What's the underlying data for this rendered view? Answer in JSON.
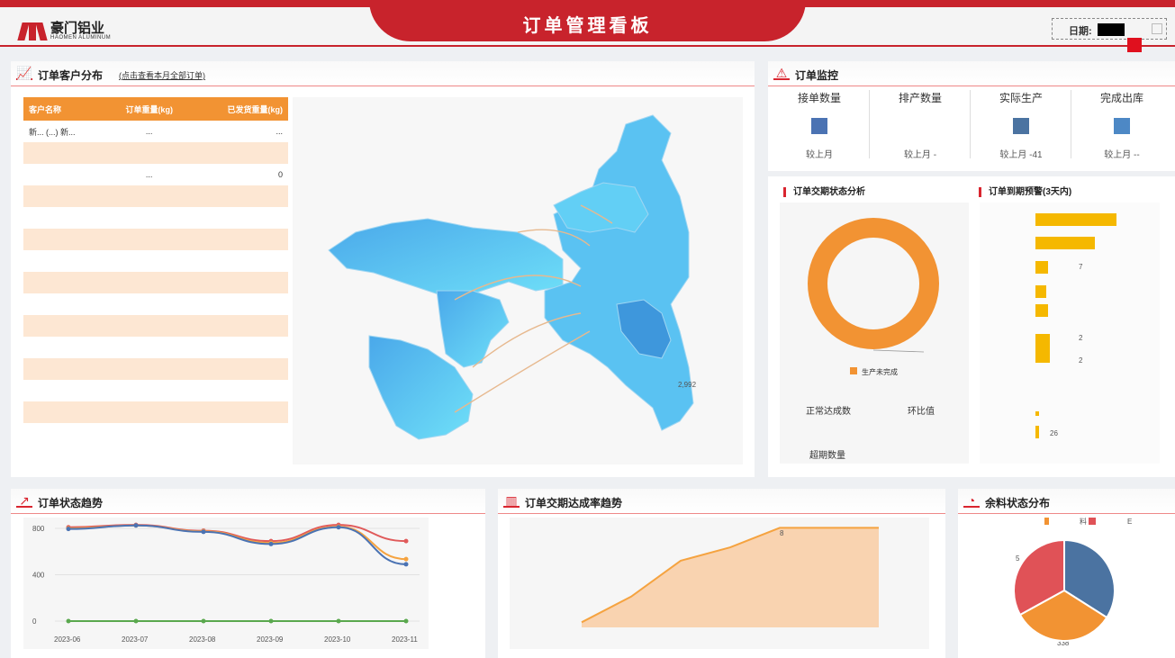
{
  "header": {
    "title": "订单管理看板",
    "logo_cn": "豪门铝业",
    "logo_en": "HAOMEN ALUMINUM",
    "date_label": "日期:"
  },
  "customer_panel": {
    "title": "订单客户分布",
    "subtitle": "(点击查看本月全部订单)",
    "columns": [
      "客户名称",
      "订单重量(kg)",
      "已发货重量(kg)"
    ],
    "rows": [
      {
        "name": "新... (...) 新...",
        "order": "...",
        "shipped": "..."
      },
      {
        "name": "",
        "order": "",
        "shipped": ""
      },
      {
        "name": "",
        "order": "...",
        "shipped": "0"
      },
      {
        "name": "",
        "order": "",
        "shipped": ""
      },
      {
        "name": "",
        "order": "",
        "shipped": ""
      },
      {
        "name": "",
        "order": "",
        "shipped": ""
      },
      {
        "name": "",
        "order": "",
        "shipped": ""
      },
      {
        "name": "",
        "order": "",
        "shipped": ""
      },
      {
        "name": "",
        "order": "",
        "shipped": ""
      },
      {
        "name": "",
        "order": "",
        "shipped": ""
      },
      {
        "name": "",
        "order": "",
        "shipped": ""
      },
      {
        "name": "",
        "order": "",
        "shipped": ""
      },
      {
        "name": "",
        "order": "",
        "shipped": ""
      },
      {
        "name": "",
        "order": "",
        "shipped": ""
      },
      {
        "name": "",
        "order": "",
        "shipped": ""
      }
    ],
    "map_label": "2,992"
  },
  "monitor": {
    "title": "订单监控",
    "cells": [
      {
        "label": "接单数量",
        "compare": "较上月",
        "color": "#4b73b3"
      },
      {
        "label": "排产数量",
        "compare": "较上月 -",
        "color": "#ffffff"
      },
      {
        "label": "实际生产",
        "compare": "较上月 -41",
        "color": "#4b73a1"
      },
      {
        "label": "完成出库",
        "compare": "较上月 --",
        "color": "#4d88c5"
      }
    ]
  },
  "status_analysis": {
    "title": "订单交期状态分析",
    "legend": "生产未完成",
    "normal_label": "正常达成数",
    "ratio_label": "环比值",
    "overdue_label": "超期数量",
    "donut_color": "#f29333"
  },
  "due_warning": {
    "title": "订单到期预警(3天内)",
    "labels": [
      "7",
      "2",
      "2",
      "26"
    ]
  },
  "trend": {
    "title": "订单状态趋势",
    "chart_data": {
      "type": "line",
      "categories": [
        "2023-06",
        "2023-07",
        "2023-08",
        "2023-09",
        "2023-10",
        "2023-11"
      ],
      "ylim": [
        0,
        800
      ],
      "yticks": [
        "800",
        "400",
        "0"
      ],
      "series": [
        {
          "name": "",
          "color": "#e05a5a",
          "values": [
            810,
            830,
            780,
            690,
            830,
            690
          ]
        },
        {
          "name": "",
          "color": "#f5a340",
          "values": [
            800,
            825,
            775,
            675,
            815,
            535
          ]
        },
        {
          "name": "",
          "color": "#4b73b3",
          "values": [
            795,
            825,
            770,
            665,
            810,
            490
          ]
        },
        {
          "name": "",
          "color": "#5aa84e",
          "values": [
            0,
            0,
            0,
            0,
            0,
            0
          ]
        }
      ]
    }
  },
  "rate_trend": {
    "title": "订单交期达成率趋势",
    "label": "8",
    "chart_data": {
      "type": "area",
      "values": [
        0.05,
        0.3,
        0.65,
        0.78,
        0.97,
        0.97,
        0.97
      ]
    }
  },
  "remnant": {
    "title": "余料状态分布",
    "legend_label": "料",
    "legend_label2": "E",
    "side_label": "5",
    "bottom_label": "338",
    "chart_data": {
      "type": "pie",
      "slices": [
        {
          "name": "",
          "value": 34,
          "color": "#4b73a1"
        },
        {
          "name": "",
          "value": 33,
          "color": "#f29333"
        },
        {
          "name": "",
          "value": 33,
          "color": "#e05257"
        }
      ]
    }
  }
}
